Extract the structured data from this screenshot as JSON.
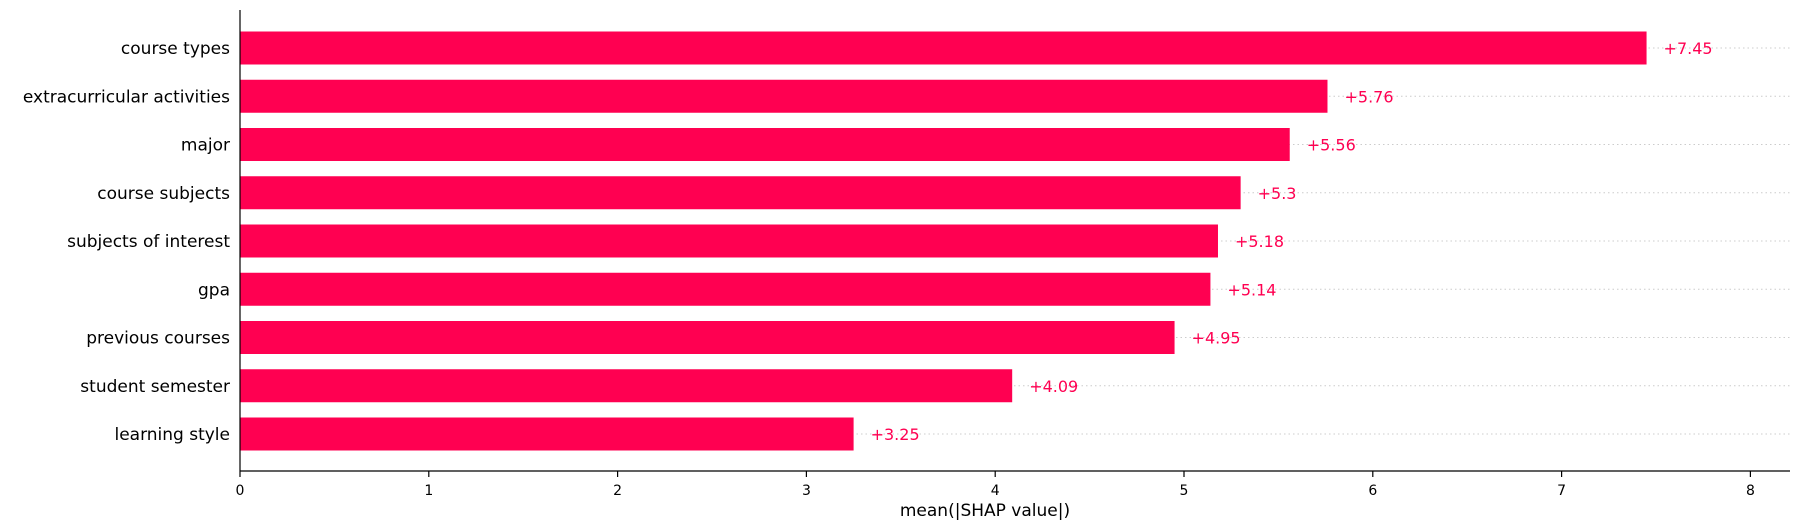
{
  "chart_data": {
    "type": "bar",
    "orientation": "horizontal",
    "categories": [
      "course types",
      "extracurricular activities",
      "major",
      "course subjects",
      "subjects of interest",
      "gpa",
      "previous courses",
      "student semester",
      "learning style"
    ],
    "values": [
      7.45,
      5.76,
      5.56,
      5.3,
      5.18,
      5.14,
      4.95,
      4.09,
      3.25
    ],
    "value_labels": [
      "+7.45",
      "+5.76",
      "+5.56",
      "+5.3",
      "+5.18",
      "+5.14",
      "+4.95",
      "+4.09",
      "+3.25"
    ],
    "xlabel": "mean(|SHAP value|)",
    "ylabel": "",
    "title": "",
    "xlim": [
      0,
      8.2
    ],
    "xticks": [
      0,
      1,
      2,
      3,
      4,
      5,
      6,
      7,
      8
    ],
    "xtick_labels": [
      "0",
      "1",
      "2",
      "3",
      "4",
      "5",
      "6",
      "7",
      "8"
    ],
    "grid": "dotted horizontal guide lines per bar",
    "colors": {
      "bar": "#ff0051",
      "value_label": "#ff0051",
      "axis": "#000000",
      "guide": "#cccccc"
    }
  }
}
